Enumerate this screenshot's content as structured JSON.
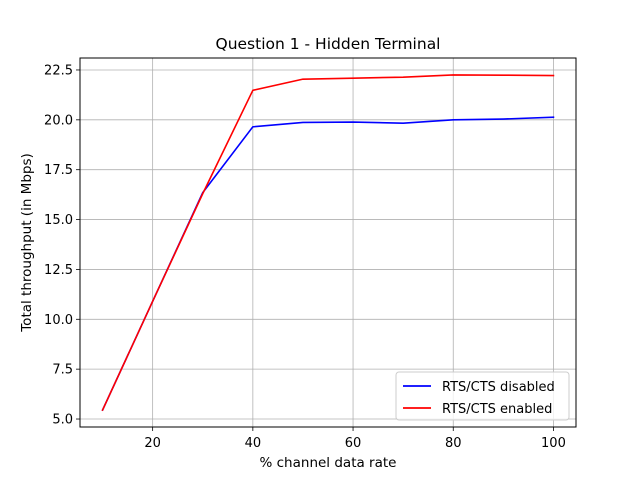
{
  "chart_data": {
    "type": "line",
    "title": "Question 1 - Hidden Terminal",
    "xlabel": "% channel data rate",
    "ylabel": "Total throughput (in Mbps)",
    "xlim": [
      5.5,
      104.5
    ],
    "ylim": [
      4.6,
      23.1
    ],
    "xticks": [
      20,
      40,
      60,
      80,
      100
    ],
    "xtick_labels": [
      "20",
      "40",
      "60",
      "80",
      "100"
    ],
    "yticks": [
      5.0,
      7.5,
      10.0,
      12.5,
      15.0,
      17.5,
      20.0,
      22.5
    ],
    "ytick_labels": [
      "5.0",
      "7.5",
      "10.0",
      "12.5",
      "15.0",
      "17.5",
      "20.0",
      "22.5"
    ],
    "grid": true,
    "legend_position": "lower-right",
    "x": [
      10,
      20,
      30,
      40,
      50,
      60,
      70,
      80,
      90,
      100
    ],
    "series": [
      {
        "name": "RTS/CTS disabled",
        "color": "#0000ff",
        "values": [
          5.45,
          10.9,
          16.35,
          19.65,
          19.87,
          19.89,
          19.83,
          20.0,
          20.04,
          20.13
        ]
      },
      {
        "name": "RTS/CTS enabled",
        "color": "#ff0000",
        "values": [
          5.45,
          10.9,
          16.3,
          21.48,
          22.04,
          22.09,
          22.14,
          22.25,
          22.24,
          22.22
        ]
      }
    ]
  }
}
